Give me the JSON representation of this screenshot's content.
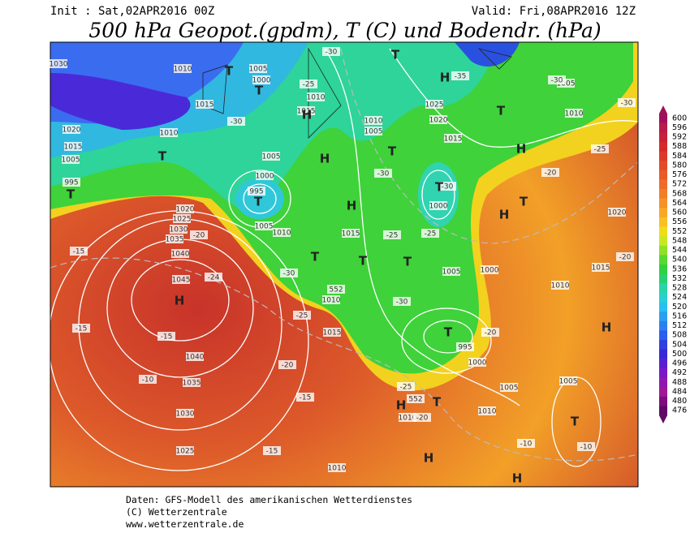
{
  "header": {
    "init": "Init : Sat,02APR2016 00Z",
    "valid": "Valid: Fri,08APR2016 12Z",
    "title": "500 hPa Geopot.(gpdm), T (C) und Bodendr. (hPa)"
  },
  "legend": {
    "levels": [
      600,
      596,
      592,
      588,
      584,
      580,
      576,
      572,
      568,
      564,
      560,
      556,
      552,
      548,
      544,
      540,
      536,
      532,
      528,
      524,
      520,
      516,
      512,
      508,
      504,
      500,
      496,
      492,
      488,
      484,
      480,
      476
    ]
  },
  "map": {
    "pressure_labels": [
      1030,
      1010,
      1005,
      1000,
      1015,
      1010,
      1020,
      1015,
      1005,
      995,
      1010,
      1015,
      1010,
      1005,
      1025,
      1020,
      1015,
      1010,
      1005,
      1005,
      1000,
      995,
      1010,
      1005,
      1020,
      1025,
      1030,
      1035,
      1040,
      1045,
      1040,
      1035,
      1030,
      1025,
      1015,
      1000,
      1005,
      1000,
      1010,
      1015,
      1020,
      1010,
      1015,
      995,
      1000,
      1005,
      1005,
      1010,
      1010,
      1010
    ],
    "temperature_labels": [
      -30,
      -35,
      -30,
      -30,
      -25,
      -30,
      -30,
      -30,
      -25,
      -25,
      -30,
      -20,
      -20,
      -25,
      -20,
      -15,
      -15,
      -10,
      -15,
      -15,
      -20,
      -24,
      -30,
      -25,
      -25,
      -20,
      -10,
      -10,
      -20,
      -15
    ],
    "centers": [
      "T",
      "T",
      "H",
      "H",
      "T",
      "T",
      "H",
      "T",
      "T",
      "H",
      "T",
      "T",
      "H",
      "T",
      "T",
      "T",
      "T",
      "T",
      "H",
      "H",
      "T",
      "H",
      "T",
      "H",
      "T",
      "H",
      "H"
    ],
    "height_labels": [
      552,
      552
    ]
  },
  "footer": {
    "lines": [
      "Daten: GFS-Modell des amerikanischen Wetterdienstes",
      "(C) Wetterzentrale",
      "www.wetterzentrale.de"
    ]
  }
}
